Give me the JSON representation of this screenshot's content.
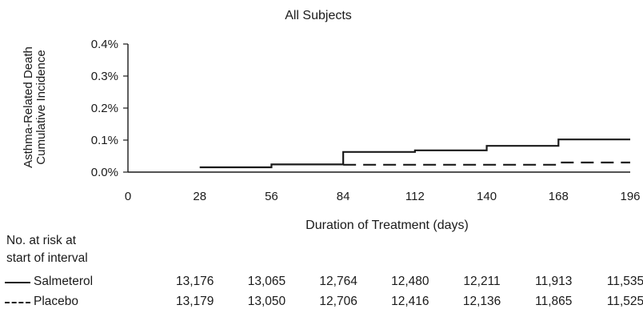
{
  "chart_data": {
    "type": "line",
    "step": true,
    "title": "All Subjects",
    "xlabel": "Duration of Treatment (days)",
    "ylabel_lines": [
      "Asthma-Related Death",
      "Cumulative Incidence"
    ],
    "xlim": [
      0,
      196
    ],
    "ylim": [
      0,
      0.4
    ],
    "x_ticks": [
      "0",
      "28",
      "56",
      "84",
      "112",
      "140",
      "168",
      "196"
    ],
    "y_ticks": [
      "0.0%",
      "0.1%",
      "0.2%",
      "0.3%",
      "0.4%"
    ],
    "series": [
      {
        "name": "Salmeterol",
        "style": "solid",
        "x": [
          28,
          56,
          84,
          112,
          140,
          168,
          196
        ],
        "y": [
          0.015,
          0.024,
          0.063,
          0.068,
          0.082,
          0.102,
          0.102
        ]
      },
      {
        "name": "Placebo",
        "style": "dashed",
        "x": [
          84,
          168,
          196
        ],
        "y": [
          0.023,
          0.03,
          0.03
        ]
      }
    ]
  },
  "risk_table": {
    "header_lines": [
      "No. at risk at",
      "start of interval"
    ],
    "rows": [
      {
        "name": "Salmeterol",
        "style": "solid",
        "values": [
          "13,176",
          "13,065",
          "12,764",
          "12,480",
          "12,211",
          "11,913",
          "11,535"
        ]
      },
      {
        "name": "Placebo",
        "style": "dashed",
        "values": [
          "13,179",
          "13,050",
          "12,706",
          "12,416",
          "12,136",
          "11,865",
          "11,525"
        ]
      }
    ]
  }
}
